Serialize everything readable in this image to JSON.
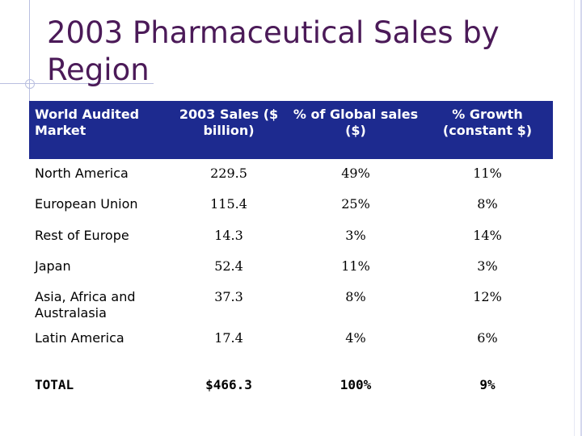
{
  "slide": {
    "title": "2003 Pharmaceutical Sales by Region"
  },
  "table": {
    "headers": [
      "World Audited Market",
      "2003 Sales ($ billion)",
      "% of Global sales ($)",
      "% Growth (constant $)"
    ],
    "rows": [
      [
        "North America",
        "229.5",
        "49%",
        "11%"
      ],
      [
        "European Union",
        "115.4",
        "25%",
        "8%"
      ],
      [
        "Rest of Europe",
        "14.3",
        "3%",
        "14%"
      ],
      [
        "Japan",
        "52.4",
        "11%",
        "3%"
      ],
      [
        "Asia, Africa and Australasia",
        "37.3",
        "8%",
        "12%"
      ],
      [
        "Latin America",
        "17.4",
        "4%",
        "6%"
      ]
    ],
    "total": [
      "TOTAL",
      "$466.3",
      "100%",
      "9%"
    ]
  },
  "colors": {
    "title": "#4b1a58",
    "header_bg": "#1d2a8f",
    "header_text": "#ffffff",
    "accent_lines": "#b9bfe0"
  }
}
